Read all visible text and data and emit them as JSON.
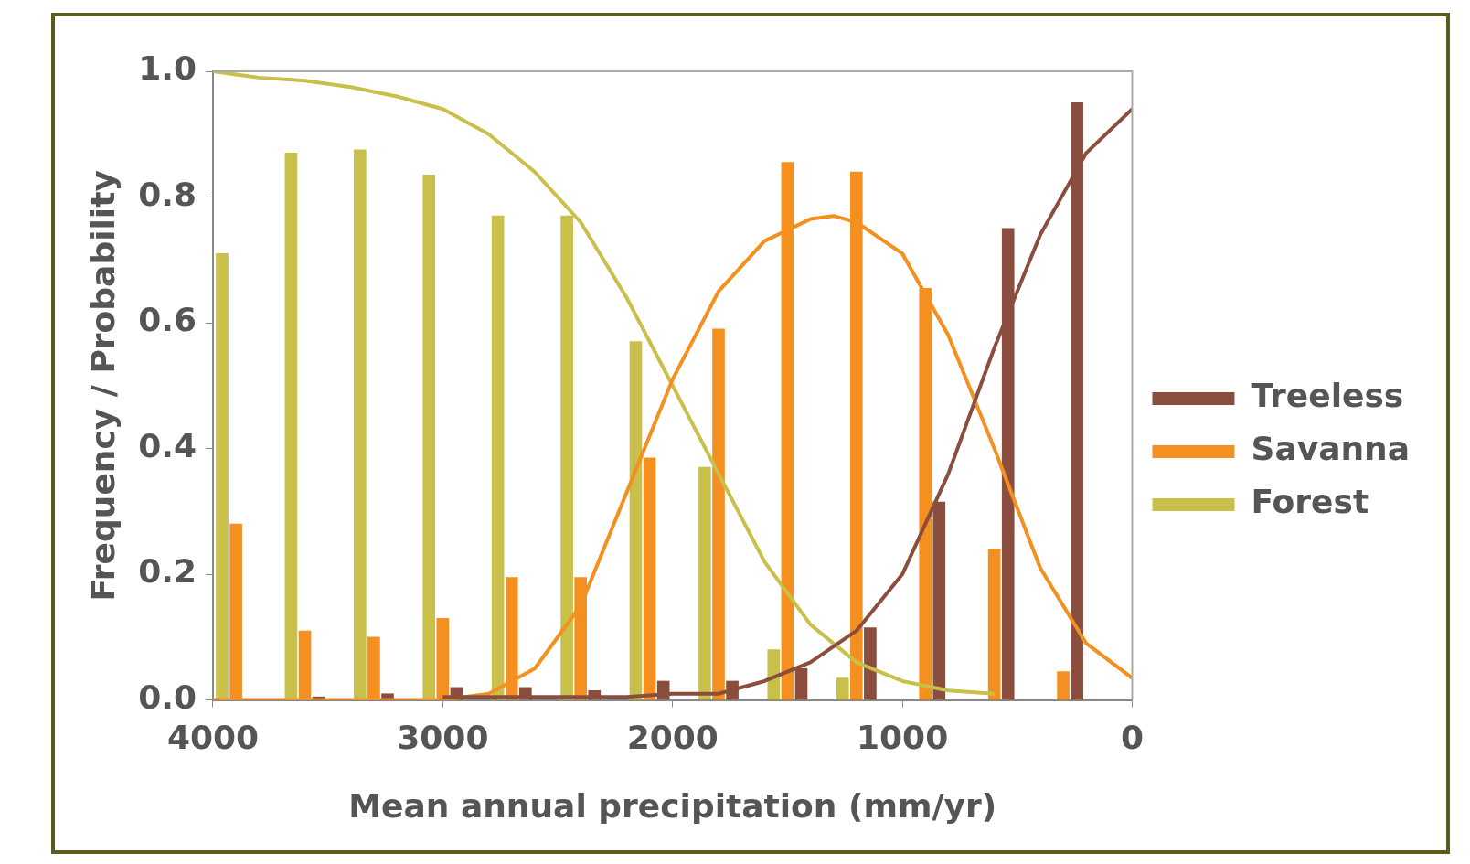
{
  "chart_data": {
    "type": "bar",
    "xlabel": "Mean annual precipitation (mm/yr)",
    "ylabel": "Frequency / Probability",
    "xlim": [
      4000,
      0
    ],
    "xticks": [
      4000,
      3000,
      2000,
      1000,
      0
    ],
    "ylim": [
      0,
      1
    ],
    "yticks": [
      {
        "value": 0,
        "label": "0.0"
      },
      {
        "value": 0.2,
        "label": "0.2"
      },
      {
        "value": 0.4,
        "label": "0.4"
      },
      {
        "value": 0.6,
        "label": "0.6"
      },
      {
        "value": 0.8,
        "label": "0.8"
      },
      {
        "value": 1,
        "label": "1.0"
      }
    ],
    "grid": false,
    "legend": "right",
    "series": [
      {
        "name": "Treeless",
        "color": "#8b4e3e",
        "x": [
          3540,
          3240,
          2940,
          2640,
          2340,
          2040,
          1740,
          1440,
          1140,
          840,
          540,
          240
        ],
        "values": [
          0.005,
          0.01,
          0.02,
          0.02,
          0.015,
          0.03,
          0.03,
          0.05,
          0.115,
          0.315,
          0.75,
          0.95
        ]
      },
      {
        "name": "Savanna",
        "color": "#f39020",
        "x": [
          3900,
          3600,
          3300,
          3000,
          2700,
          2400,
          2100,
          1800,
          1500,
          1200,
          900,
          600,
          300
        ],
        "values": [
          0.28,
          0.11,
          0.1,
          0.13,
          0.195,
          0.195,
          0.385,
          0.59,
          0.855,
          0.84,
          0.655,
          0.24,
          0.045
        ]
      },
      {
        "name": "Forest",
        "color": "#c8c04a",
        "x": [
          3960,
          3660,
          3360,
          3060,
          2760,
          2460,
          2160,
          1860,
          1560,
          1260
        ],
        "values": [
          0.71,
          0.87,
          0.875,
          0.835,
          0.77,
          0.77,
          0.57,
          0.37,
          0.08,
          0.035
        ]
      },
      {
        "type": "line",
        "color": "#8b4e3e",
        "x": [
          3000,
          2600,
          2200,
          2000,
          1800,
          1600,
          1400,
          1200,
          1000,
          800,
          600,
          400,
          200,
          0
        ],
        "values": [
          0.005,
          0.005,
          0.005,
          0.01,
          0.01,
          0.03,
          0.06,
          0.11,
          0.2,
          0.36,
          0.56,
          0.74,
          0.87,
          0.94
        ]
      },
      {
        "type": "line",
        "color": "#f39020",
        "x": [
          4000,
          3400,
          3000,
          2800,
          2600,
          2400,
          2200,
          2000,
          1800,
          1600,
          1400,
          1300,
          1200,
          1000,
          800,
          600,
          400,
          200,
          0
        ],
        "values": [
          0,
          0,
          0,
          0.01,
          0.05,
          0.15,
          0.33,
          0.51,
          0.65,
          0.73,
          0.765,
          0.77,
          0.76,
          0.71,
          0.58,
          0.4,
          0.21,
          0.09,
          0.035
        ]
      },
      {
        "type": "line",
        "color": "#c8c04a",
        "x": [
          4000,
          3800,
          3600,
          3400,
          3200,
          3000,
          2800,
          2600,
          2400,
          2200,
          2000,
          1800,
          1600,
          1400,
          1200,
          1000,
          800,
          600
        ],
        "values": [
          1,
          0.99,
          0.985,
          0.975,
          0.96,
          0.94,
          0.9,
          0.84,
          0.76,
          0.64,
          0.5,
          0.36,
          0.22,
          0.12,
          0.06,
          0.03,
          0.015,
          0.01
        ]
      }
    ]
  }
}
